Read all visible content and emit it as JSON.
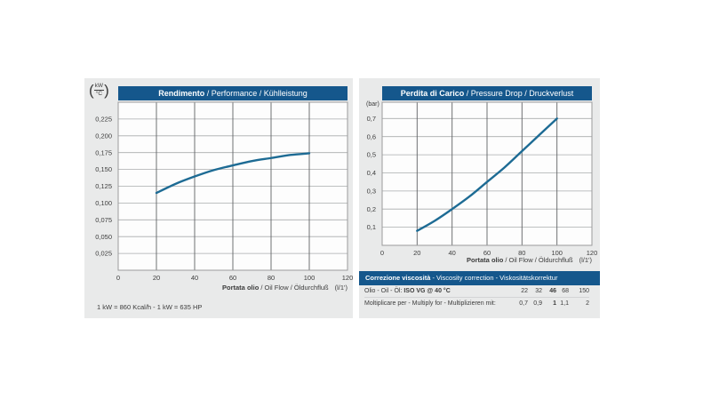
{
  "colors": {
    "panel_bg": "#e9eaea",
    "header_bg": "#15578c",
    "header_fg": "#ffffff",
    "plot_bg": "#fdfdfd",
    "plot_border": "#9a9b9c",
    "grid_vertical": "#606265",
    "grid_horizontal": "#a9abad",
    "curve": "#1d6b94",
    "text": "#3c3c3c"
  },
  "left_chart": {
    "unit_top": "kW",
    "unit_bottom": "°C",
    "title_bold": "Rendimento",
    "title_rest": " / Performance / Kühlleistung",
    "xlabel_bold": "Portata olio",
    "xlabel_rest": " / Oil Flow / Öldurchfluß",
    "xlabel_unit": "(l/1')"
  },
  "right_chart": {
    "unit": "(bar)",
    "title_bold": "Perdita di Carico",
    "title_rest": " / Pressure Drop / Druckverlust",
    "xlabel_bold": "Portata olio",
    "xlabel_rest": " / Oil Flow / Öldurchfluß",
    "xlabel_unit": "(l/1')"
  },
  "note_left": "1 kW = 860 Kcal/h  - 1 kW = 635 HP",
  "viscosity": {
    "header_bold": "Correzione viscosità",
    "header_rest": "  -  Viscosity correction  -  Viskositätskorrektur",
    "row1_label_regular": "Olio - Oil - Öl: ",
    "row1_label_bold": "ISO VG @ 40 °C",
    "row1_values": [
      "22",
      "32",
      "46",
      "68",
      "150"
    ],
    "row1_bold_index": 2,
    "row2_label": "Moltiplicare per - Multiply for - Multiplizieren mit:",
    "row2_values": [
      "0,7",
      "0,9",
      "1",
      "1,1",
      "2"
    ],
    "row2_bold_index": 2
  },
  "chart_data": [
    {
      "type": "line",
      "title": "Rendimento / Performance / Kühlleistung",
      "xlabel": "Portata olio / Oil Flow / Öldurchfluß (l/1')",
      "ylabel": "kW/°C",
      "x": [
        20,
        30,
        40,
        50,
        60,
        70,
        80,
        90,
        100
      ],
      "y": [
        0.115,
        0.1285,
        0.1395,
        0.149,
        0.156,
        0.1625,
        0.167,
        0.1715,
        0.174
      ],
      "xlim": [
        0,
        120
      ],
      "ylim": [
        0,
        0.25
      ],
      "xticks": [
        0,
        20,
        40,
        60,
        80,
        100,
        120
      ],
      "yticks": [
        0.025,
        0.05,
        0.075,
        0.1,
        0.125,
        0.15,
        0.175,
        0.2,
        0.225
      ],
      "ytick_labels": [
        "0,025",
        "0,050",
        "0,075",
        "0,100",
        "0,125",
        "0,150",
        "0,175",
        "0,200",
        "0,225"
      ],
      "grid": true,
      "legend": false
    },
    {
      "type": "line",
      "title": "Perdita di Carico / Pressure Drop / Druckverlust",
      "xlabel": "Portata olio / Oil Flow / Öldurchfluß (l/1')",
      "ylabel": "bar",
      "x": [
        20,
        30,
        40,
        50,
        60,
        70,
        80,
        90,
        100
      ],
      "y": [
        0.08,
        0.135,
        0.2,
        0.27,
        0.35,
        0.43,
        0.52,
        0.61,
        0.7
      ],
      "xlim": [
        0,
        120
      ],
      "ylim": [
        0,
        0.79
      ],
      "xticks": [
        0,
        20,
        40,
        60,
        80,
        100,
        120
      ],
      "yticks": [
        0.1,
        0.2,
        0.3,
        0.4,
        0.5,
        0.6,
        0.7
      ],
      "ytick_labels": [
        "0,1",
        "0,2",
        "0,3",
        "0,4",
        "0,5",
        "0,6",
        "0,7"
      ],
      "grid": true,
      "legend": false
    }
  ]
}
